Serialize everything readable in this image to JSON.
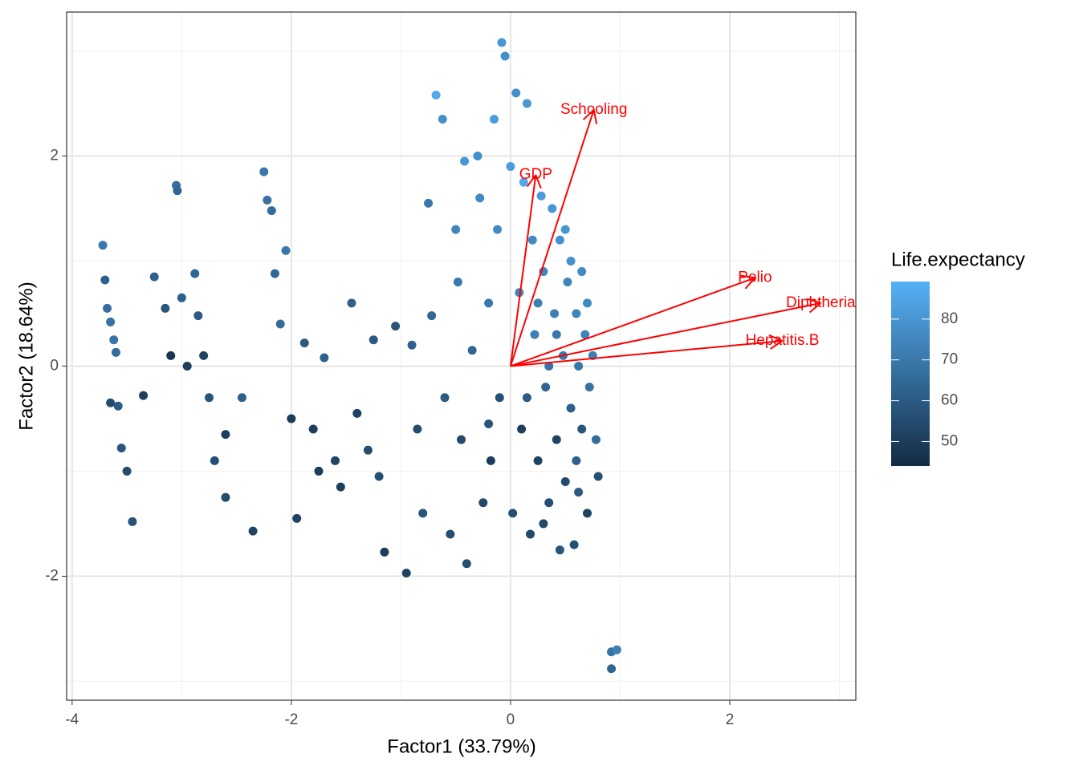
{
  "chart_data": {
    "type": "scatter",
    "x_label": "Factor1 (33.79%)",
    "y_label": "Factor2 (18.64%)",
    "xlim": [
      -4.05,
      3.15
    ],
    "ylim": [
      -3.18,
      3.37
    ],
    "xticks": [
      -4,
      -2,
      0,
      2
    ],
    "yticks": [
      -2,
      0,
      2
    ],
    "grid": true,
    "legend_title": "Life.expectancy",
    "clim": [
      44,
      89.2
    ],
    "cticks": [
      50,
      60,
      70,
      80
    ],
    "color_low": "#132B43",
    "color_high": "#56B1F7",
    "arrow_color": "#ff0000",
    "x": [
      -3.72,
      -3.7,
      -3.68,
      -3.65,
      -3.62,
      -3.6,
      -3.65,
      -3.58,
      -3.55,
      -3.5,
      -3.45,
      -3.35,
      -3.25,
      -3.15,
      -3.1,
      -3.05,
      -3.04,
      -3.0,
      -2.95,
      -2.88,
      -2.85,
      -2.8,
      -2.75,
      -2.7,
      -2.6,
      -2.6,
      -2.45,
      -2.35,
      -2.25,
      -2.22,
      -2.18,
      -2.15,
      -2.1,
      -2.05,
      -2.0,
      -1.95,
      -1.88,
      -1.8,
      -1.75,
      -1.7,
      -1.6,
      -1.55,
      -1.45,
      -1.4,
      -1.3,
      -1.25,
      -1.2,
      -1.15,
      -1.05,
      -0.95,
      -0.9,
      -0.85,
      -0.8,
      -0.75,
      -0.72,
      -0.68,
      -0.62,
      -0.6,
      -0.55,
      -0.5,
      -0.48,
      -0.45,
      -0.42,
      -0.4,
      -0.35,
      -0.3,
      -0.28,
      -0.25,
      -0.2,
      -0.18,
      -0.15,
      -0.12,
      -0.1,
      -0.08,
      -0.05,
      0.0,
      0.02,
      0.05,
      0.08,
      0.1,
      0.12,
      0.15,
      0.18,
      0.2,
      0.22,
      0.25,
      0.28,
      0.3,
      0.32,
      0.35,
      0.38,
      0.4,
      0.42,
      0.45,
      0.48,
      0.5,
      0.52,
      0.55,
      0.58,
      0.6,
      0.62,
      0.65,
      0.68,
      0.7,
      0.72,
      0.75,
      0.78,
      0.8,
      0.92,
      0.97,
      0.92,
      0.3,
      0.45,
      0.55,
      0.62,
      0.7,
      0.35,
      0.15,
      -0.2,
      0.6,
      0.42,
      0.25,
      0.5,
      0.65
    ],
    "y": [
      1.15,
      0.82,
      0.55,
      0.42,
      0.25,
      0.13,
      -0.35,
      -0.38,
      -0.78,
      -1.0,
      -1.48,
      -0.28,
      0.85,
      0.55,
      0.1,
      1.72,
      1.67,
      0.65,
      0.0,
      0.88,
      0.48,
      0.1,
      -0.3,
      -0.9,
      -1.25,
      -0.65,
      -0.3,
      -1.57,
      1.85,
      1.58,
      1.48,
      0.88,
      0.4,
      1.1,
      -0.5,
      -1.45,
      0.22,
      -0.6,
      -1.0,
      0.08,
      -0.9,
      -1.15,
      0.6,
      -0.45,
      -0.8,
      0.25,
      -1.05,
      -1.77,
      0.38,
      -1.97,
      0.2,
      -0.6,
      -1.4,
      1.55,
      0.48,
      2.58,
      2.35,
      -0.3,
      -1.6,
      1.3,
      0.8,
      -0.7,
      1.95,
      -1.88,
      0.15,
      2.0,
      1.6,
      -1.3,
      0.6,
      -0.9,
      2.35,
      1.3,
      -0.3,
      3.08,
      2.95,
      1.9,
      -1.4,
      2.6,
      0.7,
      -0.6,
      1.75,
      2.5,
      -1.6,
      1.2,
      0.3,
      -0.9,
      1.62,
      0.9,
      -0.2,
      -1.3,
      1.5,
      0.5,
      -0.7,
      1.2,
      0.1,
      -1.1,
      0.8,
      -0.4,
      -1.7,
      0.5,
      0.0,
      -0.6,
      0.3,
      -1.4,
      -0.2,
      0.1,
      -0.7,
      -1.05,
      -2.72,
      -2.7,
      -2.88,
      -1.5,
      -1.75,
      1.0,
      -1.2,
      0.6,
      0.0,
      -0.3,
      -0.55,
      -0.9,
      0.3,
      0.6,
      1.3,
      0.9
    ],
    "values": [
      70,
      62,
      66,
      68,
      69,
      66,
      55,
      60,
      58,
      55,
      57,
      50,
      62,
      58,
      48,
      66,
      64,
      62,
      50,
      64,
      60,
      52,
      58,
      56,
      55,
      50,
      62,
      52,
      70,
      68,
      66,
      64,
      66,
      70,
      50,
      52,
      60,
      50,
      50,
      62,
      52,
      50,
      62,
      52,
      55,
      60,
      56,
      50,
      58,
      52,
      62,
      55,
      58,
      70,
      65,
      86,
      78,
      60,
      56,
      74,
      70,
      54,
      80,
      56,
      64,
      78,
      76,
      54,
      70,
      50,
      82,
      76,
      56,
      80,
      78,
      82,
      56,
      78,
      74,
      50,
      86,
      80,
      54,
      76,
      72,
      52,
      82,
      74,
      64,
      56,
      80,
      72,
      52,
      78,
      70,
      54,
      74,
      62,
      56,
      74,
      70,
      58,
      74,
      52,
      68,
      72,
      66,
      56,
      68,
      72,
      64,
      54,
      58,
      78,
      60,
      76,
      68,
      60,
      58,
      62,
      70,
      72,
      80,
      76
    ],
    "arrows": [
      {
        "label": "Schooling",
        "x": 0.76,
        "y": 2.44
      },
      {
        "label": "GDP",
        "x": 0.23,
        "y": 1.82
      },
      {
        "label": "Polio",
        "x": 2.23,
        "y": 0.84
      },
      {
        "label": "Diphtheria",
        "x": 2.83,
        "y": 0.6
      },
      {
        "label": "Hepatitis.B",
        "x": 2.48,
        "y": 0.24
      }
    ]
  }
}
